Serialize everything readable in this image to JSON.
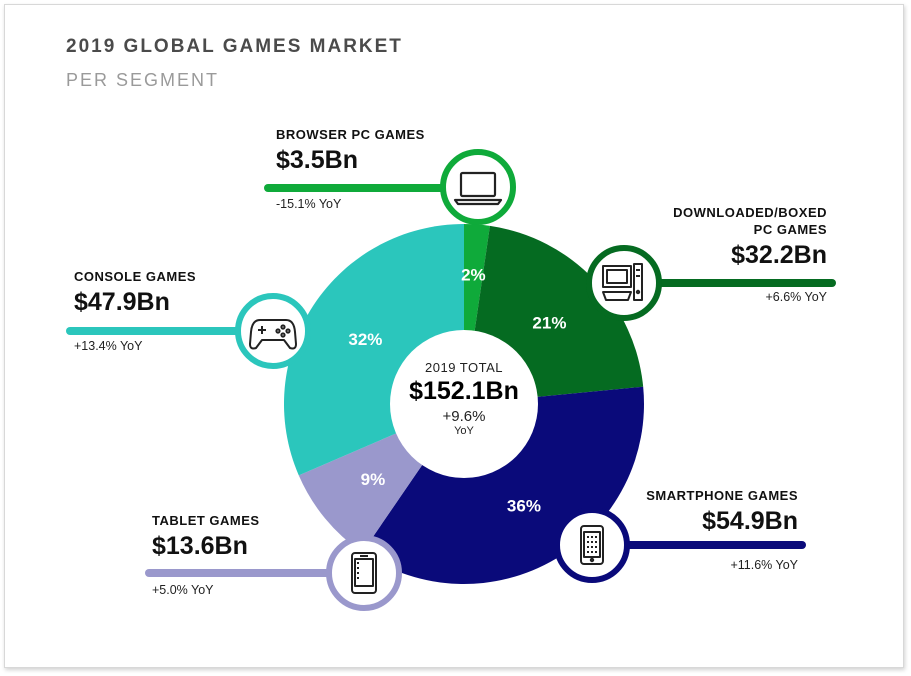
{
  "title": "2019 GLOBAL GAMES MARKET",
  "subtitle": "PER SEGMENT",
  "center": {
    "label": "2019 TOTAL",
    "value": "$152.1Bn",
    "growth": "+9.6%",
    "yoy": "YoY"
  },
  "colors": {
    "browser": "#0faa3a",
    "downloaded": "#056b21",
    "smartphone": "#0a0a7a",
    "tablet": "#9a98cc",
    "console": "#2bc6bc"
  },
  "segments": {
    "browser": {
      "name": "BROWSER PC GAMES",
      "value": "$3.5Bn",
      "yoy": "-15.1% YoY",
      "pct": "2%",
      "icon": "laptop-icon"
    },
    "downloaded": {
      "name_line1": "DOWNLOADED/BOXED",
      "name_line2": "PC GAMES",
      "value": "$32.2Bn",
      "yoy": "+6.6% YoY",
      "pct": "21%",
      "icon": "desktop-computer-icon"
    },
    "smartphone": {
      "name": "SMARTPHONE GAMES",
      "value": "$54.9Bn",
      "yoy": "+11.6% YoY",
      "pct": "36%",
      "icon": "smartphone-icon"
    },
    "tablet": {
      "name": "TABLET GAMES",
      "value": "$13.6Bn",
      "yoy": "+5.0% YoY",
      "pct": "9%",
      "icon": "tablet-icon"
    },
    "console": {
      "name": "CONSOLE GAMES",
      "value": "$47.9Bn",
      "yoy": "+13.4% YoY",
      "pct": "32%",
      "icon": "gamepad-icon"
    }
  },
  "chart_data": {
    "type": "pie",
    "title": "2019 GLOBAL GAMES MARKET",
    "subtitle": "PER SEGMENT",
    "unit": "Bn USD",
    "total": 152.1,
    "total_growth_pct": 9.6,
    "slices": [
      {
        "name": "BROWSER PC GAMES",
        "value": 3.5,
        "pct": 2,
        "yoy_pct": -15.1
      },
      {
        "name": "DOWNLOADED/BOXED PC GAMES",
        "value": 32.2,
        "pct": 21,
        "yoy_pct": 6.6
      },
      {
        "name": "SMARTPHONE GAMES",
        "value": 54.9,
        "pct": 36,
        "yoy_pct": 11.6
      },
      {
        "name": "TABLET GAMES",
        "value": 13.6,
        "pct": 9,
        "yoy_pct": 5.0
      },
      {
        "name": "CONSOLE GAMES",
        "value": 47.9,
        "pct": 32,
        "yoy_pct": 13.4
      }
    ]
  }
}
